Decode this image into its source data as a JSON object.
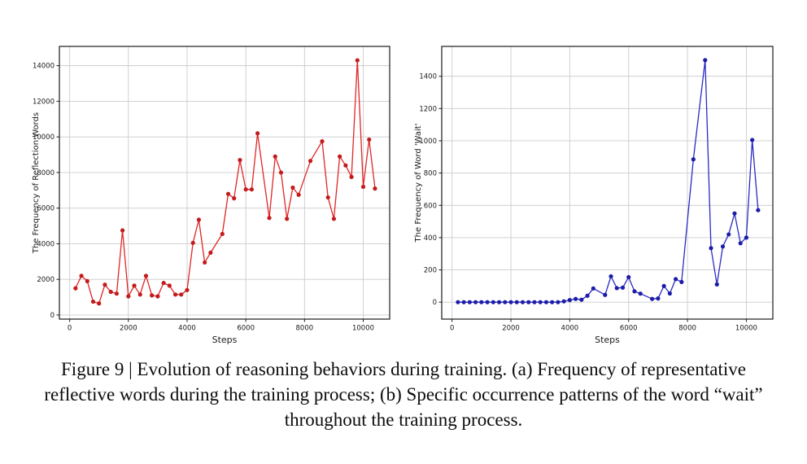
{
  "figure": {
    "background_color": "#ffffff",
    "caption": {
      "lines": [
        "Figure 9 | Evolution of reasoning behaviors during training. (a) Frequency of representative",
        "reflective words during the training process; (b) Specific occurrence patterns of the word “wait”",
        "throughout the training process."
      ]
    }
  },
  "chart_data": [
    {
      "id": "reflection-words",
      "panel": "a",
      "type": "line",
      "title": "",
      "xlabel": "Steps",
      "ylabel": "The Frequency of Reflection Words",
      "line_color": "#e02525",
      "marker_color": "#c31b1b",
      "grid": true,
      "grid_color": "#cccccc",
      "axis_color": "#1a1a1a",
      "xlim": [
        -350,
        10900
      ],
      "ylim": [
        -230,
        15080
      ],
      "xticks": [
        0,
        2000,
        4000,
        6000,
        8000,
        10000
      ],
      "yticks": [
        0,
        2000,
        4000,
        6000,
        8000,
        10000,
        12000,
        14000
      ],
      "x": [
        200,
        400,
        600,
        800,
        1000,
        1200,
        1400,
        1600,
        1800,
        2000,
        2200,
        2400,
        2600,
        2800,
        3000,
        3200,
        3400,
        3600,
        3800,
        4000,
        4200,
        4400,
        4600,
        4800,
        5200,
        5400,
        5600,
        5800,
        6000,
        6200,
        6400,
        6800,
        7000,
        7200,
        7400,
        7600,
        7800,
        8200,
        8600,
        8800,
        9000,
        9200,
        9400,
        9600,
        9800,
        10000,
        10200,
        10400
      ],
      "y": [
        1500,
        2200,
        1900,
        750,
        650,
        1700,
        1300,
        1200,
        4750,
        1050,
        1650,
        1150,
        2200,
        1100,
        1050,
        1800,
        1650,
        1150,
        1150,
        1400,
        4050,
        5350,
        2950,
        3500,
        4550,
        6800,
        6550,
        8700,
        7050,
        7050,
        10200,
        5450,
        8900,
        8000,
        5400,
        7150,
        6750,
        8650,
        9750,
        6600,
        5400,
        8900,
        8400,
        7750,
        14300,
        7200,
        9850,
        7100
      ]
    },
    {
      "id": "word-wait",
      "panel": "b",
      "type": "line",
      "title": "",
      "xlabel": "Steps",
      "ylabel": "The Frequency of Word 'Wait'",
      "line_color": "#2a2ac4",
      "marker_color": "#1c1ca8",
      "grid": true,
      "grid_color": "#cccccc",
      "axis_color": "#1a1a1a",
      "xlim": [
        -350,
        10900
      ],
      "ylim": [
        -105,
        1585
      ],
      "xticks": [
        0,
        2000,
        4000,
        6000,
        8000,
        10000
      ],
      "yticks": [
        0,
        200,
        400,
        600,
        800,
        1000,
        1200,
        1400
      ],
      "x": [
        200,
        400,
        600,
        800,
        1000,
        1200,
        1400,
        1600,
        1800,
        2000,
        2200,
        2400,
        2600,
        2800,
        3000,
        3200,
        3400,
        3600,
        3800,
        4000,
        4200,
        4400,
        4600,
        4800,
        5200,
        5400,
        5600,
        5800,
        6000,
        6200,
        6400,
        6800,
        7000,
        7200,
        7400,
        7600,
        7800,
        8200,
        8600,
        8800,
        9000,
        9200,
        9400,
        9600,
        9800,
        10000,
        10200,
        10400
      ],
      "y": [
        0,
        0,
        0,
        0,
        0,
        0,
        0,
        0,
        0,
        0,
        0,
        0,
        0,
        0,
        0,
        0,
        0,
        0,
        5,
        13,
        20,
        15,
        40,
        85,
        45,
        160,
        87,
        90,
        155,
        67,
        53,
        20,
        23,
        100,
        54,
        143,
        125,
        885,
        1500,
        335,
        110,
        345,
        420,
        550,
        365,
        400,
        1005,
        570
      ]
    }
  ]
}
